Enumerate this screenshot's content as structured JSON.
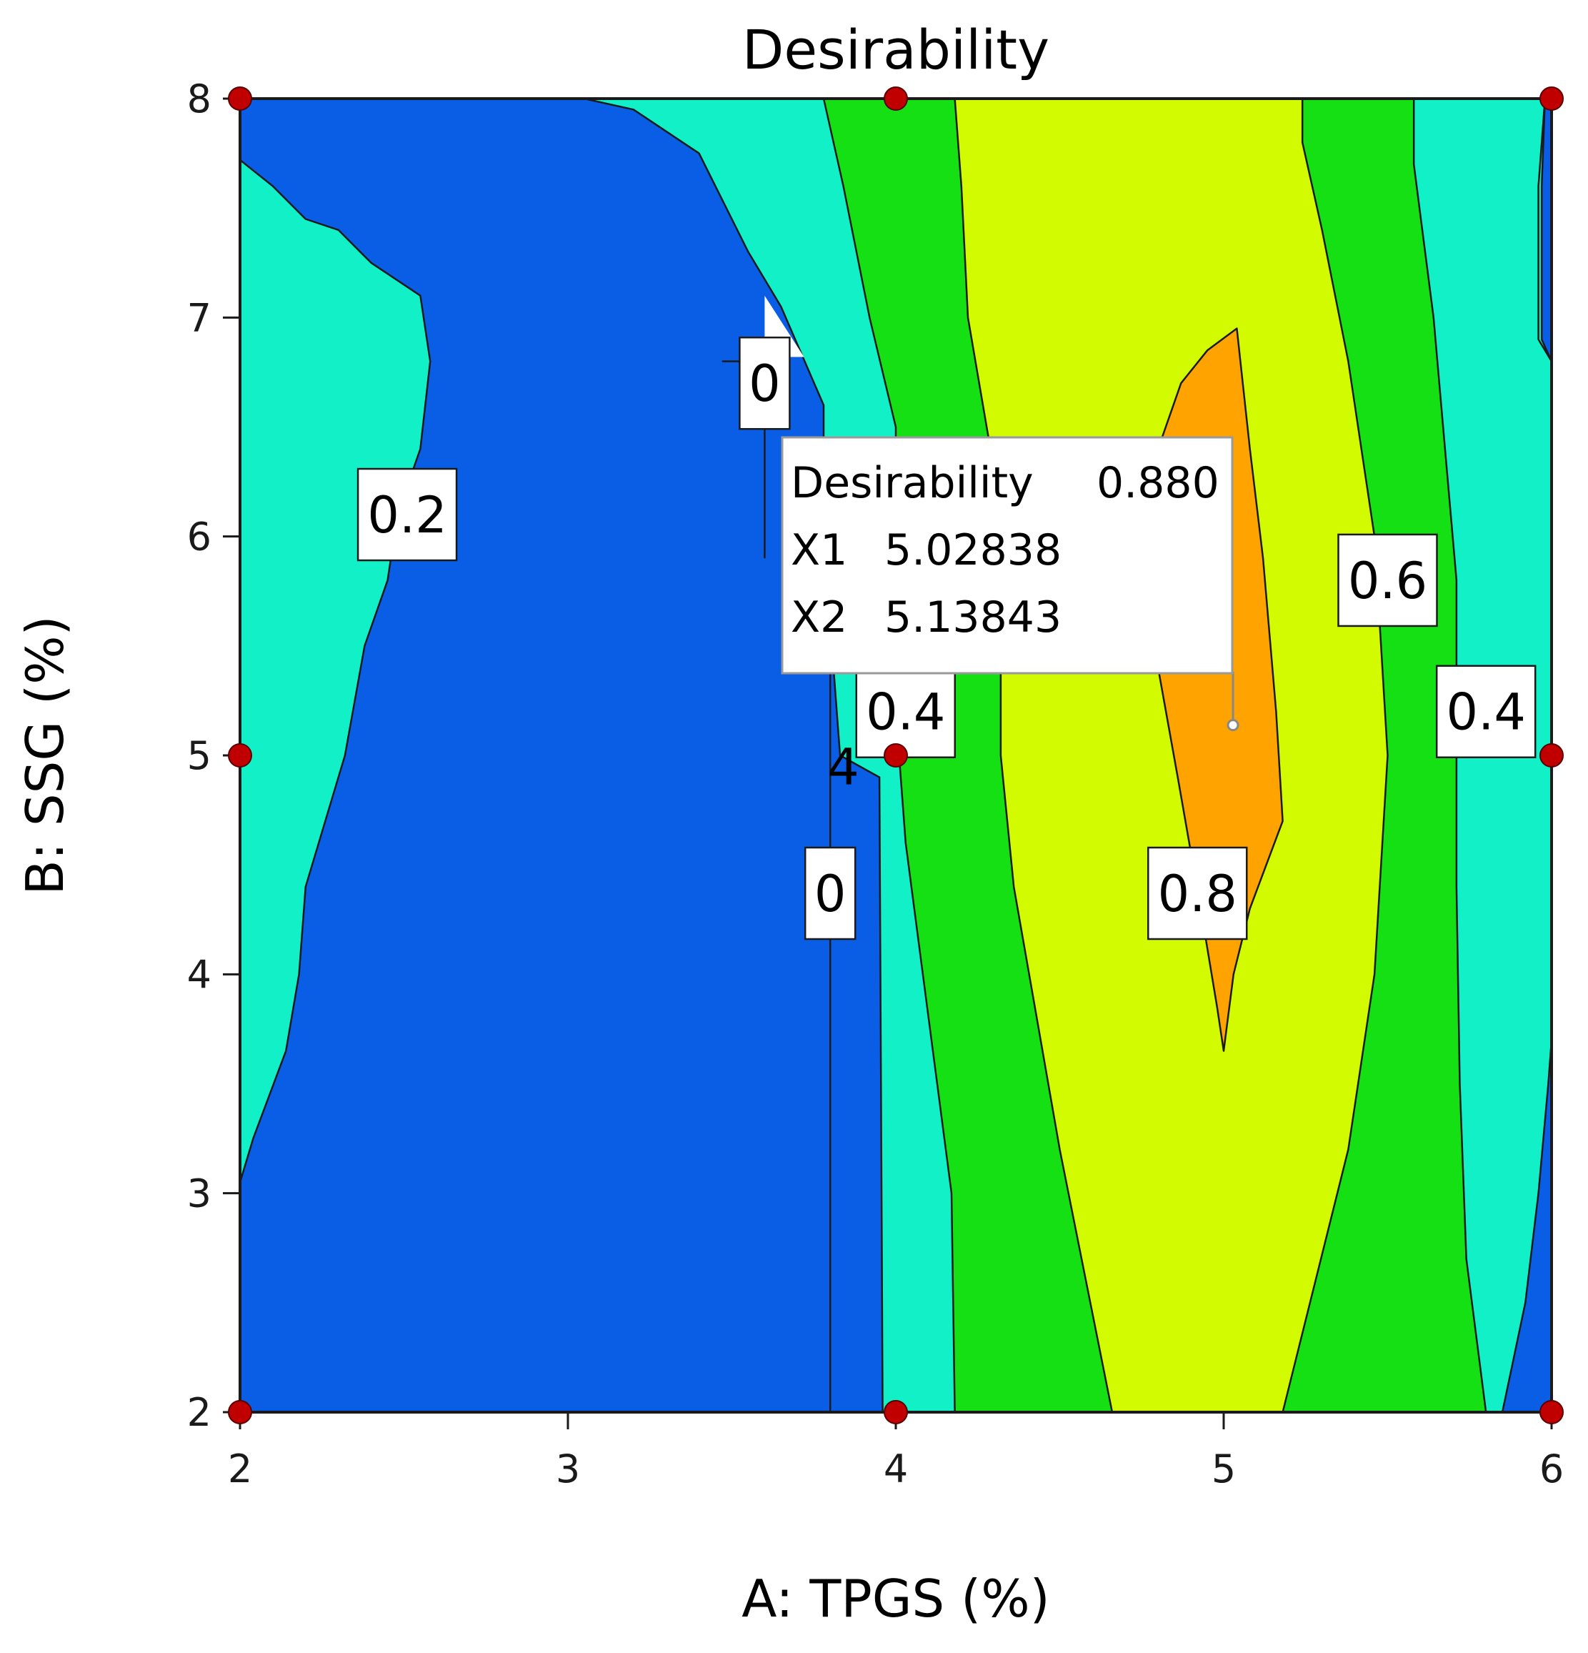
{
  "chart_data": {
    "type": "contour",
    "title": "Desirability",
    "xlabel": "A: TPGS (%)",
    "ylabel": "B: SSG (%)",
    "xlim": [
      2,
      6
    ],
    "ylim": [
      2,
      8
    ],
    "x_ticks": [
      "2",
      "3",
      "4",
      "5",
      "6"
    ],
    "y_ticks": [
      "2",
      "3",
      "4",
      "5",
      "6",
      "7",
      "8"
    ],
    "colors": {
      "level_0": "#0a5ee6",
      "level_02": "#12f0c8",
      "level_04": "#14e014",
      "level_06": "#d2fa00",
      "level_08": "#ffa300",
      "design_point": "#c00000"
    },
    "contour_labels": [
      {
        "text": "0.2",
        "x": 2.51,
        "y": 6.1
      },
      {
        "text": "0",
        "x": 3.6,
        "y": 6.7
      },
      {
        "text": "0",
        "x": 3.8,
        "y": 4.37
      },
      {
        "text": "0.4",
        "x": 4.03,
        "y": 5.2
      },
      {
        "text": "0.8",
        "x": 4.92,
        "y": 4.37
      },
      {
        "text": "0.6",
        "x": 5.5,
        "y": 5.8
      },
      {
        "text": "0.4",
        "x": 5.8,
        "y": 5.2
      }
    ],
    "stray_label": {
      "text": "4",
      "x": 3.84,
      "y": 4.95
    },
    "design_points": [
      {
        "x": 2,
        "y": 8
      },
      {
        "x": 4,
        "y": 8
      },
      {
        "x": 6,
        "y": 8
      },
      {
        "x": 2,
        "y": 5
      },
      {
        "x": 4,
        "y": 5
      },
      {
        "x": 6,
        "y": 5
      },
      {
        "x": 2,
        "y": 2
      },
      {
        "x": 4,
        "y": 2
      },
      {
        "x": 6,
        "y": 2
      }
    ],
    "flag_point": {
      "x": 5.02838,
      "y": 5.13843
    },
    "tooltip": {
      "rows": [
        {
          "name": "Desirability",
          "value": "0.880"
        },
        {
          "name": "X1",
          "value": "5.02838"
        },
        {
          "name": "X2",
          "value": "5.13843"
        }
      ]
    },
    "regions": [
      {
        "level": "level_02",
        "points": [
          [
            2,
            7.72
          ],
          [
            2.1,
            7.6
          ],
          [
            2.2,
            7.45
          ],
          [
            2.3,
            7.4
          ],
          [
            2.4,
            7.25
          ],
          [
            2.55,
            7.1
          ],
          [
            2.58,
            6.8
          ],
          [
            2.55,
            6.4
          ],
          [
            2.48,
            6.1
          ],
          [
            2.45,
            5.8
          ],
          [
            2.38,
            5.5
          ],
          [
            2.32,
            5.0
          ],
          [
            2.28,
            4.8
          ],
          [
            2.2,
            4.4
          ],
          [
            2.18,
            4.0
          ],
          [
            2.14,
            3.65
          ],
          [
            2.04,
            3.25
          ],
          [
            2,
            3.05
          ]
        ]
      },
      {
        "level": "level_02",
        "points": [
          [
            3.05,
            8
          ],
          [
            3.2,
            7.95
          ],
          [
            3.4,
            7.75
          ],
          [
            3.55,
            7.3
          ],
          [
            3.65,
            7.05
          ],
          [
            3.78,
            6.6
          ],
          [
            3.78,
            6.3
          ],
          [
            3.8,
            5.6
          ],
          [
            3.83,
            5.0
          ],
          [
            3.95,
            4.9
          ],
          [
            3.96,
            2
          ],
          [
            6,
            2
          ],
          [
            6,
            8
          ]
        ]
      },
      {
        "level": "level_04",
        "points": [
          [
            3.78,
            8
          ],
          [
            3.84,
            7.6
          ],
          [
            3.92,
            7.0
          ],
          [
            4.0,
            6.5
          ],
          [
            4.0,
            5.9
          ],
          [
            4.0,
            5.2
          ],
          [
            4.03,
            4.6
          ],
          [
            4.1,
            3.8
          ],
          [
            4.17,
            3.0
          ],
          [
            4.18,
            2
          ],
          [
            5.8,
            2
          ],
          [
            5.74,
            2.7
          ],
          [
            5.72,
            3.5
          ],
          [
            5.71,
            4.4
          ],
          [
            5.71,
            5.0
          ],
          [
            5.71,
            5.8
          ],
          [
            5.64,
            7.0
          ],
          [
            5.58,
            7.7
          ],
          [
            5.58,
            8
          ]
        ]
      },
      {
        "level": "level_06",
        "points": [
          [
            4.18,
            8
          ],
          [
            4.2,
            7.6
          ],
          [
            4.22,
            7.0
          ],
          [
            4.3,
            6.3
          ],
          [
            4.32,
            5.8
          ],
          [
            4.32,
            5.0
          ],
          [
            4.36,
            4.4
          ],
          [
            4.43,
            3.8
          ],
          [
            4.5,
            3.2
          ],
          [
            4.58,
            2.6
          ],
          [
            4.66,
            2
          ],
          [
            5.18,
            2
          ],
          [
            5.28,
            2.6
          ],
          [
            5.38,
            3.2
          ],
          [
            5.46,
            4.0
          ],
          [
            5.48,
            4.5
          ],
          [
            5.5,
            5.0
          ],
          [
            5.46,
            6.0
          ],
          [
            5.38,
            6.8
          ],
          [
            5.3,
            7.4
          ],
          [
            5.24,
            7.8
          ],
          [
            5.24,
            8
          ]
        ]
      },
      {
        "level": "level_08",
        "points": [
          [
            4.87,
            6.7
          ],
          [
            4.95,
            6.85
          ],
          [
            5.04,
            6.95
          ],
          [
            5.08,
            6.4
          ],
          [
            5.12,
            5.9
          ],
          [
            5.16,
            5.2
          ],
          [
            5.18,
            4.7
          ],
          [
            5.08,
            4.3
          ],
          [
            5.03,
            4.0
          ],
          [
            5.0,
            3.65
          ],
          [
            4.98,
            3.85
          ],
          [
            4.93,
            4.3
          ],
          [
            4.86,
            4.9
          ],
          [
            4.8,
            5.4
          ],
          [
            4.75,
            6.0
          ],
          [
            4.8,
            6.4
          ]
        ]
      },
      {
        "level": "level_02",
        "points": [
          [
            5.98,
            8
          ],
          [
            5.96,
            7.6
          ],
          [
            5.96,
            6.9
          ],
          [
            6,
            6.8
          ]
        ]
      },
      {
        "level": "level_0",
        "points": [
          [
            5.98,
            8
          ],
          [
            6,
            8
          ],
          [
            6,
            6.8
          ],
          [
            5.97,
            6.9
          ],
          [
            5.97,
            7.6
          ]
        ]
      },
      {
        "level": "level_0",
        "points": [
          [
            5.85,
            2
          ],
          [
            5.92,
            2.5
          ],
          [
            5.96,
            3.0
          ],
          [
            5.99,
            3.5
          ],
          [
            6,
            3.7
          ],
          [
            6,
            2
          ]
        ]
      }
    ],
    "notch": [
      [
        3.6,
        7.1
      ],
      [
        3.6,
        6.82
      ],
      [
        3.72,
        6.82
      ]
    ]
  }
}
